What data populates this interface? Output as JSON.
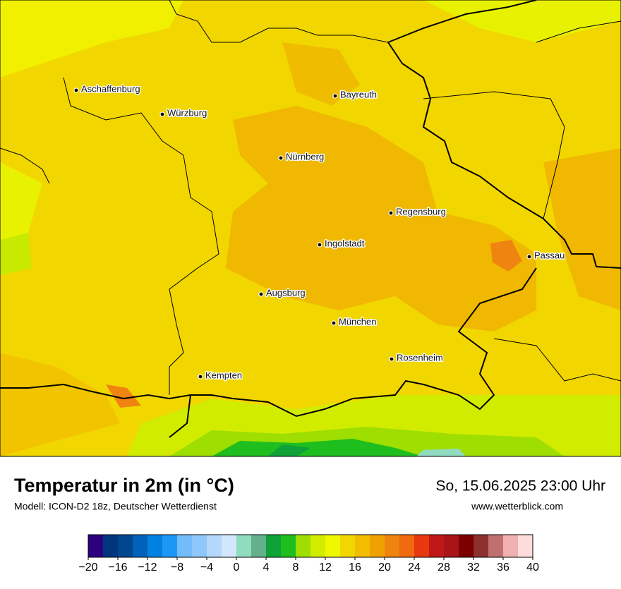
{
  "map": {
    "title": "Temperatur in 2m (in °C)",
    "subtitle": "Modell: ICON-D2 18z, Deutscher Wetterdienst",
    "datetime": "So, 15.06.2025 23:00 Uhr",
    "website": "www.wetterblick.com",
    "cities": [
      "Aschaffenburg",
      "Würzburg",
      "Bayreuth",
      "Nürnberg",
      "Regensburg",
      "Ingolstadt",
      "Passau",
      "Augsburg",
      "München",
      "Rosenheim",
      "Kempten"
    ],
    "colorbar": {
      "lim": [
        -20,
        40
      ],
      "colors": [
        "#2d007f",
        "#00367f",
        "#00478f",
        "#0062b8",
        "#0080e0",
        "#1e96f6",
        "#72bcf9",
        "#8ec8fa",
        "#b4d8fc",
        "#d2e6fc",
        "#90dcc0",
        "#64b08c",
        "#0ea238",
        "#1ebe1e",
        "#9ede00",
        "#d2ec00",
        "#f0f800",
        "#f2d600",
        "#f2bc00",
        "#f0a000",
        "#f08410",
        "#f06a10",
        "#e83810",
        "#c01818",
        "#a81418",
        "#7c0000",
        "#8c3030",
        "#c07070",
        "#f0b0b0",
        "#ffdcdc"
      ],
      "ticks": [
        {
          "value": -20,
          "label": "−20"
        },
        {
          "value": -16,
          "label": "−16"
        },
        {
          "value": -12,
          "label": "−12"
        },
        {
          "value": -8,
          "label": "−8"
        },
        {
          "value": -4,
          "label": "−4"
        },
        0,
        4,
        8,
        12,
        16,
        20,
        24,
        28,
        32,
        36,
        40
      ]
    }
  }
}
